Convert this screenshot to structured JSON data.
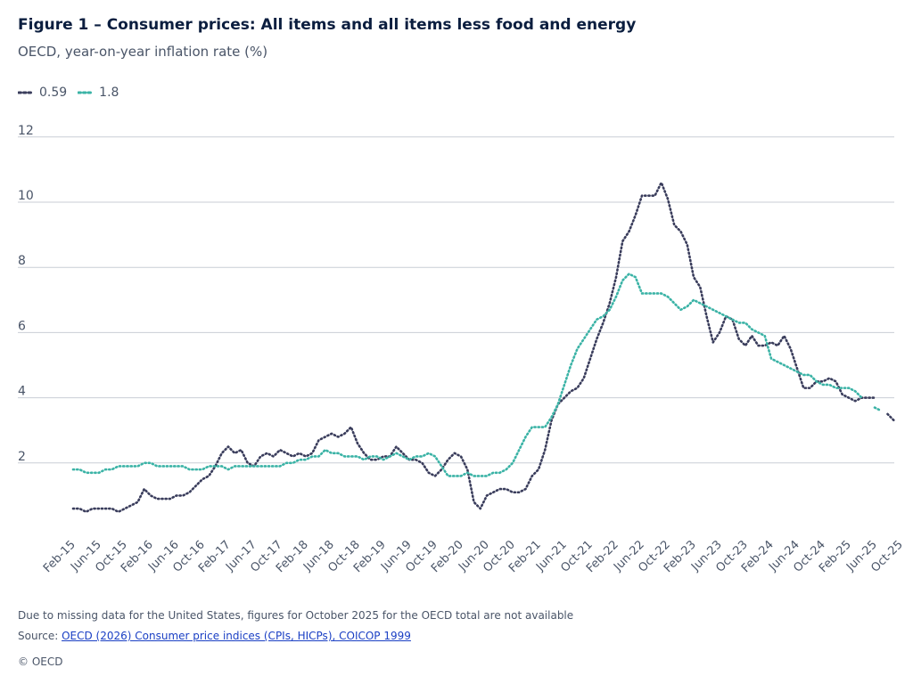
{
  "figure": {
    "title": "Figure 1 – Consumer prices: All items and all items less food and energy",
    "subtitle": "OECD, year-on-year inflation rate (%)",
    "footnote": "Due to missing data for the United States, figures for October 2025 for the OECD total are not available",
    "source_prefix": "Source: ",
    "source_link_text": "OECD (2026) Consumer price indices (CPIs, HICPs), COICOP 1999",
    "copyright": "© OECD"
  },
  "legend": [
    {
      "label": "0.59",
      "color": "#3a3d5c"
    },
    {
      "label": "1.8",
      "color": "#3bb3a6"
    }
  ],
  "chart_data": {
    "type": "line",
    "title": "Figure 1 – Consumer prices: All items and all items less food and energy",
    "ylabel": "year-on-year inflation rate (%)",
    "ylim": [
      0,
      12
    ],
    "yticks": [
      2,
      4,
      6,
      8,
      10,
      12
    ],
    "grid": true,
    "legend_position": "top-left",
    "start_month": "2015-02",
    "x_tick_labels": [
      "Feb-15",
      "Jun-15",
      "Oct-15",
      "Feb-16",
      "Jun-16",
      "Oct-16",
      "Feb-17",
      "Jun-17",
      "Oct-17",
      "Feb-18",
      "Jun-18",
      "Oct-18",
      "Feb-19",
      "Jun-19",
      "Oct-19",
      "Feb-20",
      "Jun-20",
      "Oct-20",
      "Feb-21",
      "Jun-21",
      "Oct-21",
      "Feb-22",
      "Jun-22",
      "Oct-22",
      "Feb-23",
      "Jun-23",
      "Oct-23",
      "Feb-24",
      "Jun-24",
      "Oct-24",
      "Feb-25",
      "Jun-25",
      "Oct-25"
    ],
    "series": [
      {
        "name": "0.59",
        "color": "#3a3d5c",
        "values": [
          0.6,
          0.6,
          0.5,
          0.6,
          0.6,
          0.6,
          0.6,
          0.5,
          0.6,
          0.7,
          0.8,
          1.2,
          1.0,
          0.9,
          0.9,
          0.9,
          1.0,
          1.0,
          1.1,
          1.3,
          1.5,
          1.6,
          1.9,
          2.3,
          2.5,
          2.3,
          2.4,
          2.0,
          1.9,
          2.2,
          2.3,
          2.2,
          2.4,
          2.3,
          2.2,
          2.3,
          2.2,
          2.3,
          2.7,
          2.8,
          2.9,
          2.8,
          2.9,
          3.1,
          2.6,
          2.3,
          2.1,
          2.1,
          2.2,
          2.2,
          2.5,
          2.3,
          2.1,
          2.1,
          2.0,
          1.7,
          1.6,
          1.8,
          2.1,
          2.3,
          2.2,
          1.8,
          0.8,
          0.6,
          1.0,
          1.1,
          1.2,
          1.2,
          1.1,
          1.1,
          1.2,
          1.6,
          1.8,
          2.4,
          3.3,
          3.8,
          4.0,
          4.2,
          4.3,
          4.6,
          5.2,
          5.8,
          6.3,
          6.9,
          7.7,
          8.8,
          9.1,
          9.6,
          10.2,
          10.2,
          10.2,
          10.6,
          10.1,
          9.3,
          9.1,
          8.7,
          7.7,
          7.4,
          6.5,
          5.7,
          6.0,
          6.5,
          6.4,
          5.8,
          5.6,
          5.9,
          5.6,
          5.6,
          5.7,
          5.6,
          5.9,
          5.5,
          4.9,
          4.3,
          4.3,
          4.5,
          4.5,
          4.6,
          4.5,
          4.1,
          4.0,
          3.9,
          4.0,
          4.0,
          4.0,
          null,
          3.5,
          3.3
        ]
      },
      {
        "name": "1.8",
        "color": "#3bb3a6",
        "values": [
          1.8,
          1.8,
          1.7,
          1.7,
          1.7,
          1.8,
          1.8,
          1.9,
          1.9,
          1.9,
          1.9,
          2.0,
          2.0,
          1.9,
          1.9,
          1.9,
          1.9,
          1.9,
          1.8,
          1.8,
          1.8,
          1.9,
          1.9,
          1.9,
          1.8,
          1.9,
          1.9,
          1.9,
          1.9,
          1.9,
          1.9,
          1.9,
          1.9,
          2.0,
          2.0,
          2.1,
          2.1,
          2.2,
          2.2,
          2.4,
          2.3,
          2.3,
          2.2,
          2.2,
          2.2,
          2.1,
          2.2,
          2.2,
          2.1,
          2.2,
          2.3,
          2.2,
          2.1,
          2.2,
          2.2,
          2.3,
          2.2,
          1.9,
          1.6,
          1.6,
          1.6,
          1.7,
          1.6,
          1.6,
          1.6,
          1.7,
          1.7,
          1.8,
          2.0,
          2.4,
          2.8,
          3.1,
          3.1,
          3.1,
          3.4,
          3.8,
          4.4,
          5.0,
          5.5,
          5.8,
          6.1,
          6.4,
          6.5,
          6.7,
          7.1,
          7.6,
          7.8,
          7.7,
          7.2,
          7.2,
          7.2,
          7.2,
          7.1,
          6.9,
          6.7,
          6.8,
          7.0,
          6.9,
          6.8,
          6.7,
          6.6,
          6.5,
          6.4,
          6.3,
          6.3,
          6.1,
          6.0,
          5.9,
          5.2,
          5.1,
          5.0,
          4.9,
          4.8,
          4.7,
          4.7,
          4.5,
          4.4,
          4.4,
          4.3,
          4.3,
          4.3,
          4.2,
          4.0,
          null,
          3.7,
          3.6
        ]
      }
    ]
  }
}
